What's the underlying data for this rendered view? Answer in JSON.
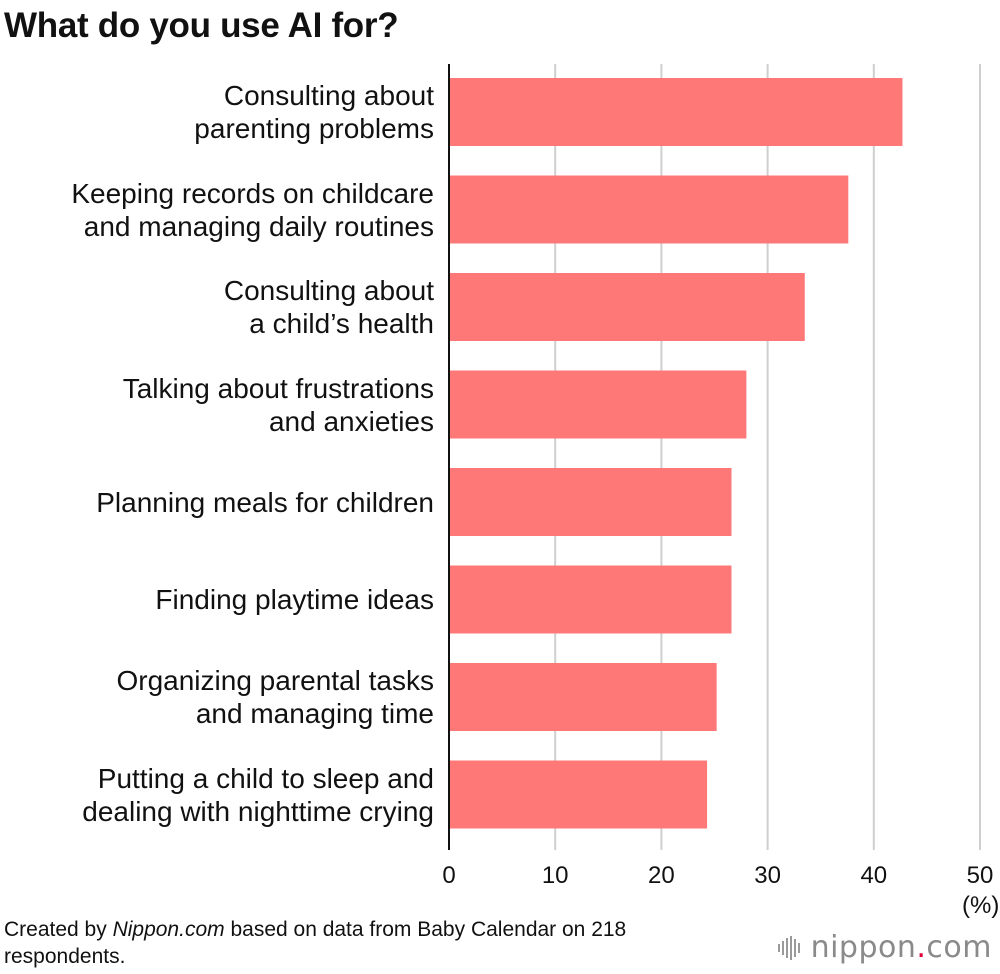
{
  "colors": {
    "bar": "#ff7878",
    "grid": "#cfcfcf",
    "axis": "#111111",
    "brand_dot": "#e0003c"
  },
  "chart_data": {
    "type": "bar",
    "orientation": "horizontal",
    "title": "What do you use AI for?",
    "categories": [
      "Consulting about\nparenting problems",
      "Keeping records on childcare\nand managing daily routines",
      "Consulting about\na child’s health",
      "Talking about frustrations\nand anxieties",
      "Planning meals for children",
      "Finding playtime ideas",
      "Organizing parental tasks\nand managing time",
      "Putting a child to sleep and\ndealing with nighttime crying"
    ],
    "values": [
      42.7,
      37.6,
      33.5,
      28.0,
      26.6,
      26.6,
      25.2,
      24.3
    ],
    "xlim": [
      0,
      50
    ],
    "ticks": [
      "0",
      "10",
      "20",
      "30",
      "40",
      "50"
    ],
    "unit": "(%)",
    "grid": true
  },
  "footer": {
    "prefix": "Created by ",
    "source_italic": "Nippon.com",
    "suffix": " based on data from Baby Calendar on 218 respondents."
  },
  "brand": {
    "name": "nippon",
    "dot": ".",
    "tld": "com",
    "icon": "soundwave-icon"
  }
}
